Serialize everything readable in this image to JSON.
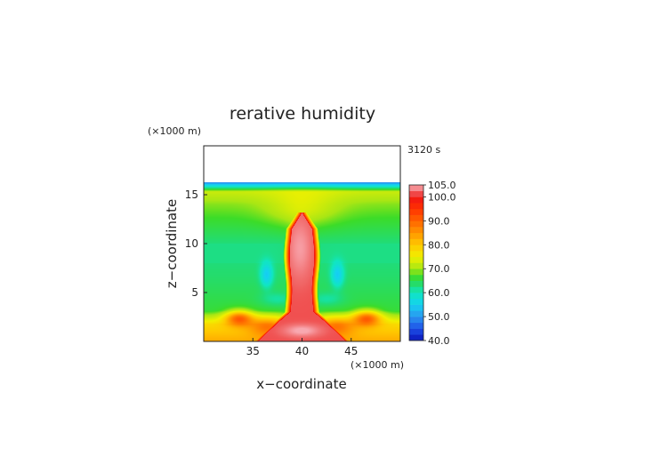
{
  "chart_data": {
    "type": "heatmap",
    "title": "rerative humidity",
    "time_label": "3120 s",
    "xlabel": "x−coordinate",
    "ylabel": "z−coordinate",
    "x_unit": "(×1000 m)",
    "y_unit": "(×1000 m)",
    "xlim": [
      30,
      50
    ],
    "ylim": [
      0,
      20
    ],
    "xticks": [
      35,
      40,
      45
    ],
    "yticks": [
      5,
      10,
      15
    ],
    "xtick_labels": [
      "35",
      "40",
      "45"
    ],
    "ytick_labels": [
      "5",
      "10",
      "15"
    ],
    "colorbar": {
      "min": 40,
      "max": 105,
      "tick_values": [
        40,
        50,
        60,
        70,
        80,
        90,
        100,
        105
      ],
      "tick_labels": [
        "40.0",
        "50.0",
        "60.0",
        "70.0",
        "80.0",
        "90.0",
        "100.0",
        "105.0"
      ],
      "stops": [
        {
          "value": 40,
          "color": "#0a14b8"
        },
        {
          "value": 45,
          "color": "#1e50e8"
        },
        {
          "value": 50,
          "color": "#2a96f0"
        },
        {
          "value": 55,
          "color": "#14d2f0"
        },
        {
          "value": 60,
          "color": "#10e6c0"
        },
        {
          "value": 63,
          "color": "#20dc78"
        },
        {
          "value": 67,
          "color": "#3cdc28"
        },
        {
          "value": 70,
          "color": "#a8e614"
        },
        {
          "value": 75,
          "color": "#f0f000"
        },
        {
          "value": 80,
          "color": "#ffc800"
        },
        {
          "value": 85,
          "color": "#ff9600"
        },
        {
          "value": 90,
          "color": "#ff6400"
        },
        {
          "value": 95,
          "color": "#ff3200"
        },
        {
          "value": 100,
          "color": "#f01414"
        },
        {
          "value": 102,
          "color": "#f06464"
        },
        {
          "value": 105,
          "color": "#f8a8b0"
        }
      ]
    }
  }
}
